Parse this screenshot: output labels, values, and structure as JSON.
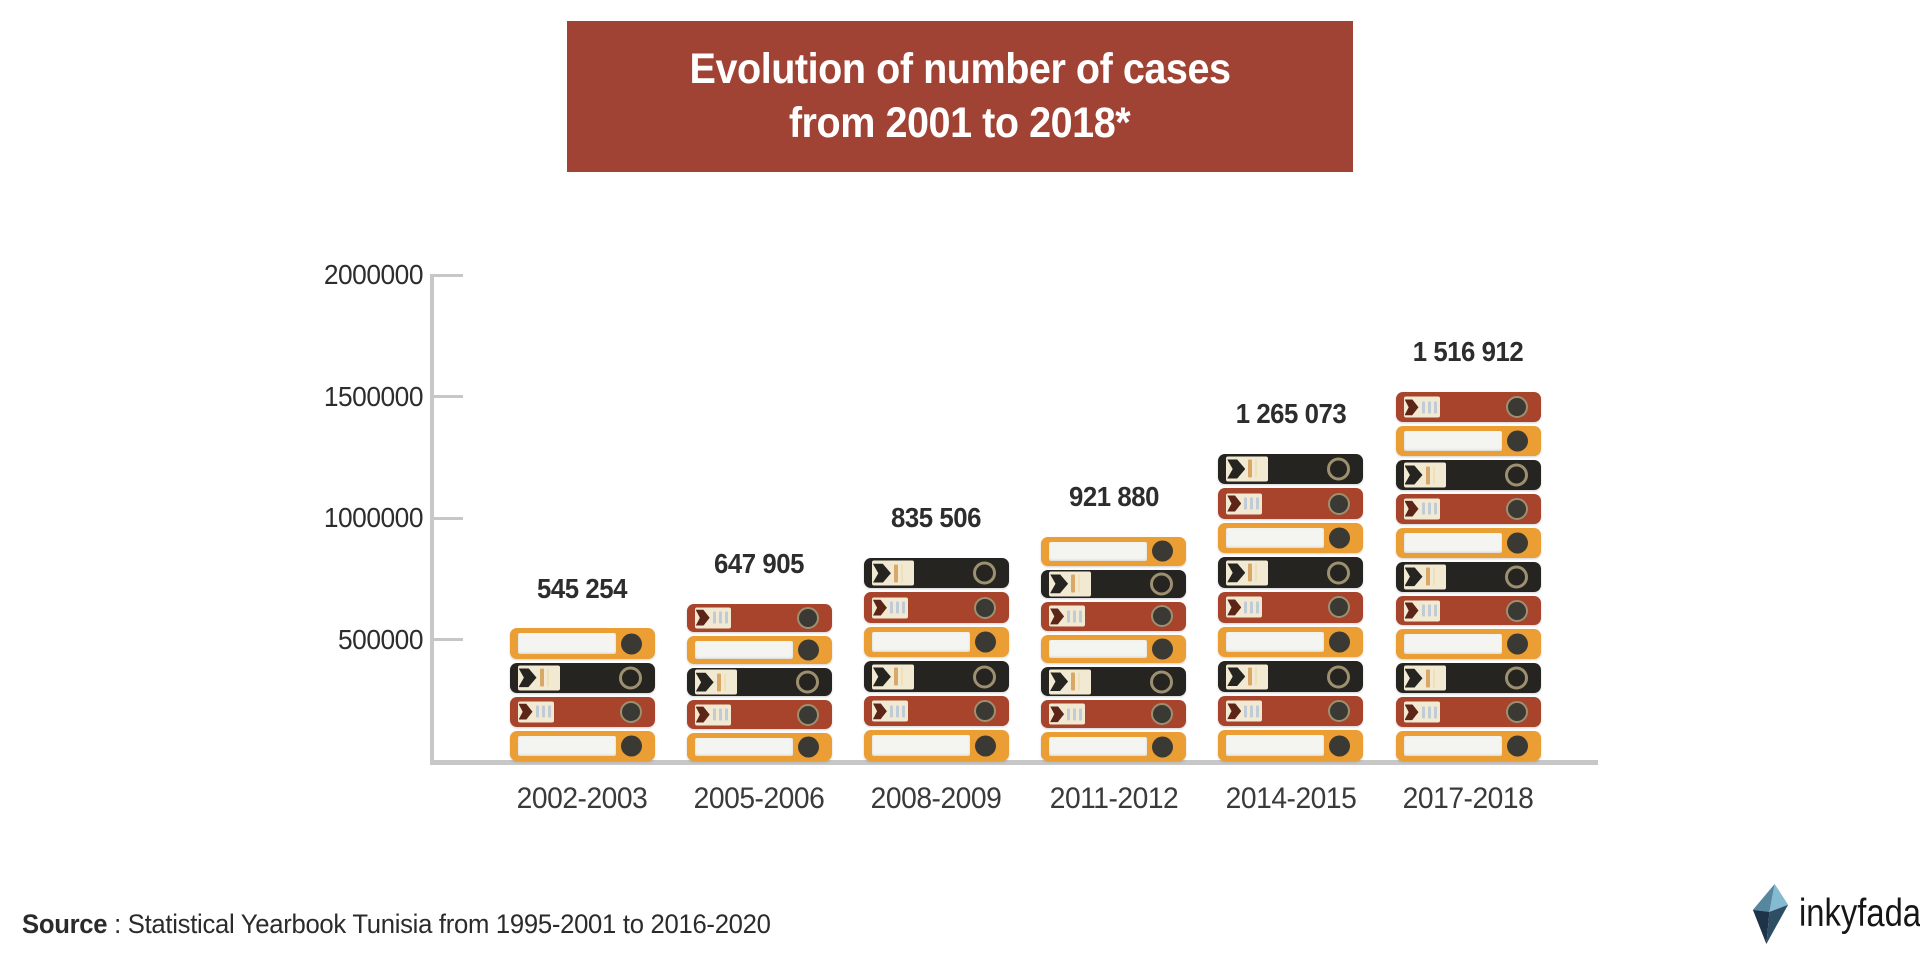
{
  "title": {
    "line1": "Evolution of number of cases",
    "line2": "from 2001 to 2018*"
  },
  "source": {
    "label": "Source",
    "rest": " : Statistical Yearbook Tunisia from 1995-2001 to 2016-2020"
  },
  "logo": {
    "text": "inkyfada"
  },
  "colors": {
    "title_bg": "#A04334",
    "title_text": "#FFFFFF",
    "binder_orange": "#EA9E33",
    "binder_red": "#A8432C",
    "binder_black": "#262420",
    "axis": "#C7C7C7",
    "label_text": "#2D2D2D",
    "tab_cream": "#F2E9D2",
    "strip_white": "#F4F4F1",
    "stripe_blue": "#BFCBD6",
    "stripe_tan": "#D9A868",
    "ring_tan": "#9C9070",
    "dot_dark": "#3B3933"
  },
  "chart_data": {
    "type": "bar",
    "title": "Evolution of number of cases from 2001 to 2018*",
    "categories": [
      "2002-2003",
      "2005-2006",
      "2008-2009",
      "2011-2012",
      "2014-2015",
      "2017-2018"
    ],
    "values": [
      545254,
      647905,
      835506,
      921880,
      1265073,
      1516912
    ],
    "value_labels": [
      "545 254",
      "647 905",
      "835 506",
      "921 880",
      "1 265 073",
      "1 516 912"
    ],
    "xlabel": "",
    "ylabel": "",
    "ylim": [
      0,
      2000000
    ],
    "yticks": [
      {
        "value": 500000,
        "label": "500000"
      },
      {
        "value": 1000000,
        "label": "1000000"
      },
      {
        "value": 1500000,
        "label": "1500000"
      },
      {
        "value": 2000000,
        "label": "2000000"
      }
    ],
    "grid": false,
    "legend": false,
    "bar_style": {
      "unit": "archive-binder-icons",
      "binder_counts": [
        4,
        5,
        6,
        7,
        9,
        11
      ],
      "binder_color_cycle_bottom_up": [
        "orange",
        "red",
        "black"
      ]
    }
  }
}
